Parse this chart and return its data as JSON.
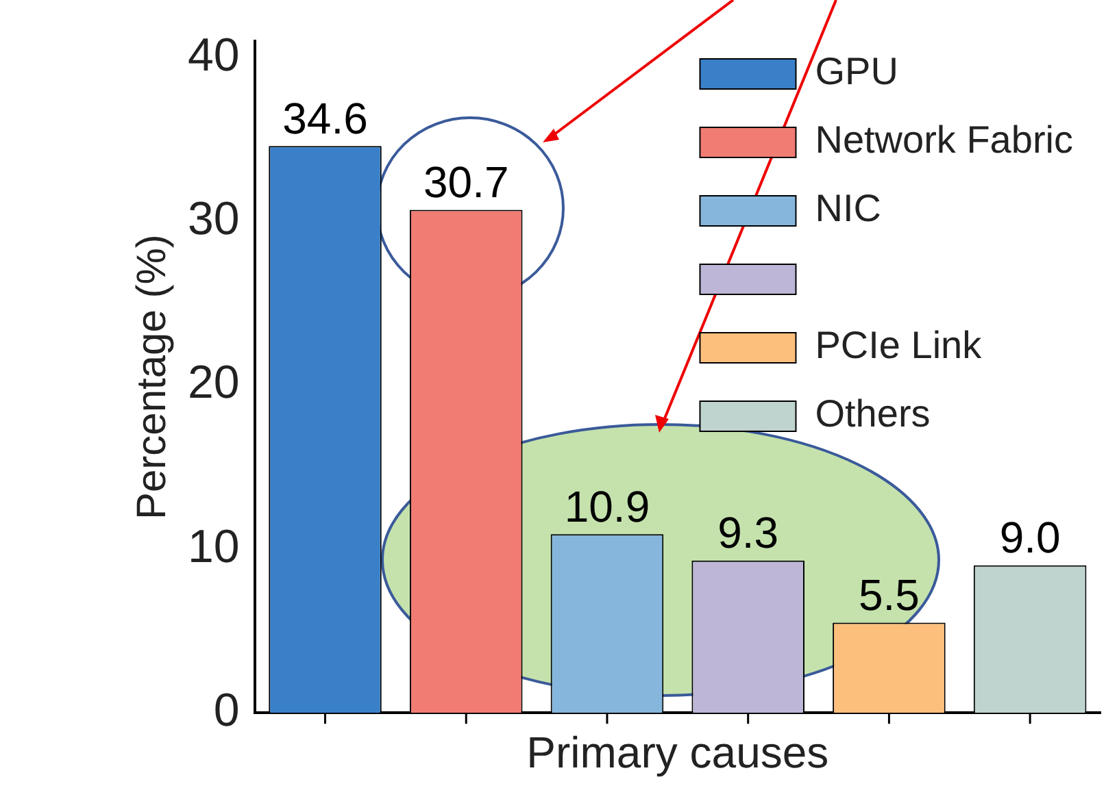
{
  "chart_data": {
    "type": "bar",
    "xlabel": "Primary causes",
    "ylabel": "Percentage (%)",
    "categories": [
      null,
      null,
      null,
      null,
      null,
      null
    ],
    "series": [
      {
        "name": "GPU",
        "color": "#3a80c8",
        "values": [
          34.6,
          null,
          null,
          null,
          null,
          null
        ],
        "value_labels": [
          "34.6",
          null,
          null,
          null,
          null,
          null
        ]
      },
      {
        "name": "Network Fabric",
        "color": "#f07c74",
        "values": [
          null,
          30.7,
          null,
          null,
          null,
          null
        ],
        "value_labels": [
          null,
          "30.7",
          null,
          null,
          null,
          null
        ]
      },
      {
        "name": "NIC",
        "color": "#86b6dc",
        "values": [
          null,
          null,
          10.9,
          null,
          null,
          null
        ],
        "value_labels": [
          null,
          null,
          "10.9",
          null,
          null,
          null
        ]
      },
      {
        "color": "#bdb6d6",
        "values": [
          null,
          null,
          null,
          9.3,
          null,
          null
        ],
        "value_labels": [
          null,
          null,
          null,
          "9.3",
          null,
          null
        ]
      },
      {
        "name": "PCIe Link",
        "color": "#fdbf7c",
        "values": [
          null,
          null,
          null,
          null,
          5.5,
          null
        ],
        "value_labels": [
          null,
          null,
          null,
          null,
          "5.5",
          null
        ]
      },
      {
        "name": "Others",
        "color": "#bfd3cf",
        "values": [
          null,
          null,
          null,
          null,
          null,
          9.0
        ],
        "value_labels": [
          null,
          null,
          null,
          null,
          null,
          "9.0"
        ]
      }
    ],
    "ylim": [
      0,
      41
    ],
    "yticks": [
      0,
      10,
      20,
      30,
      40
    ],
    "legend": "top right",
    "grid": false
  }
}
